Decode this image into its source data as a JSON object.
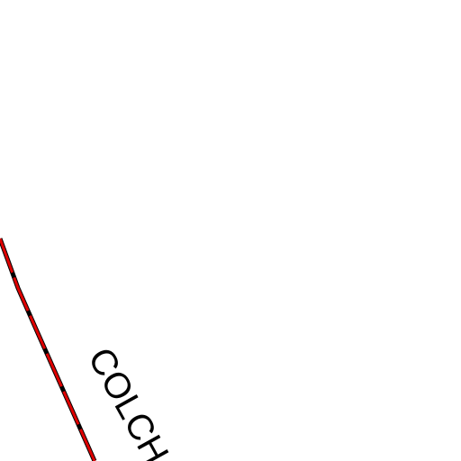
{
  "map": {
    "label": "COLCH"
  }
}
